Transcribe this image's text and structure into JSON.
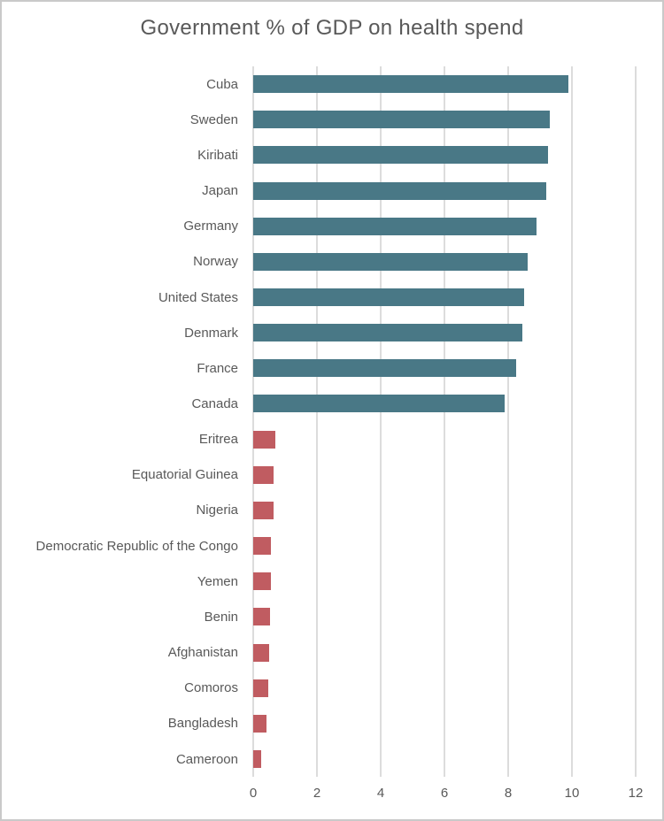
{
  "window": {
    "background_color": "#ffffff",
    "border_color": "#c9c9c9"
  },
  "styles": {
    "text_color": "#595959",
    "gridline_color": "#dcdcdc"
  },
  "chart_data": {
    "type": "bar",
    "orientation": "horizontal",
    "title": "Government % of GDP on health spend",
    "xlabel": "",
    "ylabel": "",
    "xlim": [
      0,
      12
    ],
    "x_ticks": [
      0,
      2,
      4,
      6,
      8,
      10,
      12
    ],
    "gridlines": "vertical",
    "legend": "none",
    "group_colors": {
      "top10": "#497886",
      "bottom10": "#c05c61"
    },
    "categories": [
      "Cuba",
      "Sweden",
      "Kiribati",
      "Japan",
      "Germany",
      "Norway",
      "United States",
      "Denmark",
      "France",
      "Canada",
      "Eritrea",
      "Equatorial Guinea",
      "Nigeria",
      "Democratic Republic of the Congo",
      "Yemen",
      "Benin",
      "Afghanistan",
      "Comoros",
      "Bangladesh",
      "Cameroon"
    ],
    "values": [
      9.9,
      9.3,
      9.25,
      9.2,
      8.9,
      8.6,
      8.5,
      8.45,
      8.25,
      7.9,
      0.7,
      0.65,
      0.64,
      0.56,
      0.55,
      0.52,
      0.51,
      0.46,
      0.43,
      0.26
    ],
    "bar_groups": [
      "top10",
      "top10",
      "top10",
      "top10",
      "top10",
      "top10",
      "top10",
      "top10",
      "top10",
      "top10",
      "bottom10",
      "bottom10",
      "bottom10",
      "bottom10",
      "bottom10",
      "bottom10",
      "bottom10",
      "bottom10",
      "bottom10",
      "bottom10"
    ]
  }
}
